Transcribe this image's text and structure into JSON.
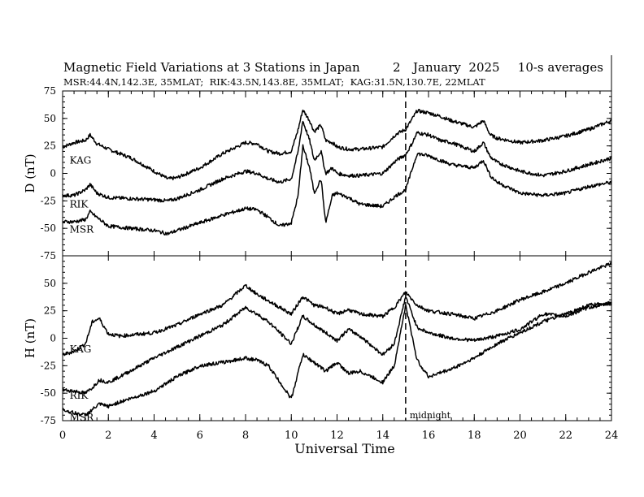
{
  "chart_data": {
    "type": "line",
    "title": "Magnetic Field Variations at 3 Stations in Japan",
    "date_day": "2",
    "date_text": "January  2025",
    "averaging": "10-s averages",
    "subtitle": "MSR:44.4N,142.3E, 35MLAT;  RIK:43.5N,143.8E, 35MLAT;  KAG:31.5N,130.7E, 22MLAT",
    "xlabel": "Universal Time",
    "xlim": [
      0,
      24
    ],
    "xticks": [
      "0",
      "2",
      "4",
      "6",
      "8",
      "10",
      "12",
      "14",
      "16",
      "18",
      "20",
      "22",
      "24"
    ],
    "midnight_ut": 15,
    "midnight_label": "midnight",
    "panels": [
      {
        "ylabel": "D (nT)",
        "ylim": [
          -75,
          75
        ],
        "yticks": [
          "75",
          "50",
          "25",
          "0",
          "-25",
          "-50",
          "-75"
        ],
        "series": [
          {
            "name": "KAG",
            "label_ut": 0.2,
            "label_value": 12,
            "x": [
              0,
              0.5,
              1,
              1.2,
              1.5,
              2,
              3,
              4,
              4.6,
              5,
              6,
              7,
              8,
              8.5,
              9,
              9.5,
              10,
              10.3,
              10.5,
              10.8,
              11,
              11.3,
              11.5,
              11.8,
              12,
              12.5,
              13,
              14,
              14.6,
              15,
              15.3,
              15.5,
              16,
              16.5,
              17,
              18,
              18.4,
              18.7,
              19,
              20,
              21,
              22,
              23,
              24
            ],
            "y": [
              24,
              28,
              30,
              35,
              27,
              22,
              14,
              2,
              -5,
              -4,
              5,
              18,
              28,
              27,
              20,
              18,
              20,
              40,
              58,
              48,
              38,
              44,
              30,
              28,
              24,
              22,
              22,
              24,
              36,
              40,
              50,
              57,
              55,
              52,
              48,
              42,
              48,
              35,
              32,
              28,
              30,
              34,
              40,
              48
            ]
          },
          {
            "name": "RIK",
            "label_ut": 0.2,
            "label_value": -28,
            "x": [
              0,
              0.5,
              1,
              1.2,
              1.5,
              2,
              3,
              4,
              4.6,
              5,
              6,
              7,
              8,
              8.5,
              9,
              9.5,
              10,
              10.3,
              10.5,
              10.8,
              11,
              11.3,
              11.5,
              11.8,
              12,
              12.5,
              13,
              14,
              14.6,
              15,
              15.3,
              15.5,
              16,
              16.5,
              17,
              18,
              18.4,
              18.7,
              19,
              20,
              21,
              22,
              23,
              24
            ],
            "y": [
              -20,
              -20,
              -15,
              -10,
              -18,
              -22,
              -23,
              -24,
              -25,
              -23,
              -15,
              -5,
              2,
              0,
              -5,
              -8,
              -5,
              20,
              48,
              30,
              12,
              20,
              0,
              5,
              0,
              -2,
              -2,
              0,
              12,
              17,
              28,
              37,
              35,
              30,
              28,
              20,
              28,
              15,
              10,
              2,
              -2,
              2,
              8,
              14
            ]
          },
          {
            "name": "MSR",
            "label_ut": 0.2,
            "label_value": -51,
            "x": [
              0,
              0.5,
              1,
              1.2,
              1.5,
              2,
              3,
              4,
              4.6,
              5,
              6,
              7,
              8,
              8.5,
              9,
              9.5,
              10,
              10.3,
              10.5,
              10.8,
              11,
              11.3,
              11.5,
              11.8,
              12,
              12.5,
              13,
              14,
              14.6,
              15,
              15.3,
              15.5,
              16,
              16.5,
              17,
              18,
              18.4,
              18.7,
              19,
              20,
              21,
              22,
              23,
              24
            ],
            "y": [
              -44,
              -44,
              -42,
              -35,
              -40,
              -48,
              -50,
              -52,
              -55,
              -52,
              -45,
              -38,
              -32,
              -33,
              -40,
              -48,
              -45,
              -20,
              25,
              5,
              -18,
              -5,
              -45,
              -20,
              -18,
              -22,
              -28,
              -30,
              -20,
              -15,
              5,
              18,
              16,
              12,
              8,
              5,
              12,
              -2,
              -8,
              -18,
              -20,
              -18,
              -12,
              -8
            ]
          }
        ]
      },
      {
        "ylabel": "H (nT)",
        "ylim": [
          -75,
          75
        ],
        "yticks": [
          "75",
          "50",
          "25",
          "0",
          "-25",
          "-50",
          "-75"
        ],
        "series": [
          {
            "name": "KAG",
            "label_ut": 0.2,
            "label_value": -10,
            "x": [
              0,
              0.5,
              1,
              1.3,
              1.6,
              2,
              2.5,
              4,
              5,
              6,
              7,
              8,
              8.5,
              9,
              10,
              10.5,
              11,
              11.5,
              12,
              12.5,
              13,
              14,
              14.5,
              15,
              15.5,
              16,
              17,
              18,
              19,
              20,
              21,
              22,
              23,
              24
            ],
            "y": [
              -15,
              -12,
              -5,
              15,
              18,
              4,
              2,
              5,
              12,
              22,
              30,
              48,
              40,
              34,
              22,
              38,
              30,
              28,
              22,
              26,
              22,
              20,
              28,
              42,
              30,
              25,
              22,
              18,
              25,
              35,
              42,
              50,
              60,
              68
            ]
          },
          {
            "name": "RIK",
            "label_ut": 0.2,
            "label_value": -52,
            "x": [
              0,
              0.5,
              1,
              1.3,
              1.6,
              2,
              2.5,
              4,
              5,
              6,
              7,
              8,
              8.5,
              9,
              10,
              10.5,
              11,
              11.5,
              12,
              12.5,
              13,
              14,
              14.5,
              15,
              15.5,
              16,
              17,
              18,
              19,
              20,
              21,
              22,
              23,
              24
            ],
            "y": [
              -47,
              -48,
              -50,
              -45,
              -38,
              -40,
              -35,
              -18,
              -8,
              2,
              12,
              28,
              22,
              15,
              -5,
              20,
              12,
              5,
              -2,
              8,
              2,
              -15,
              -5,
              38,
              10,
              5,
              0,
              -2,
              2,
              8,
              22,
              20,
              28,
              32
            ]
          },
          {
            "name": "MSR",
            "label_ut": 0.2,
            "label_value": -72,
            "x": [
              0,
              0.5,
              1,
              1.3,
              1.6,
              2,
              2.5,
              4,
              5,
              6,
              7,
              8,
              8.5,
              9,
              10,
              10.5,
              11,
              11.5,
              12,
              12.5,
              13,
              14,
              14.5,
              15,
              15.5,
              16,
              17,
              18,
              19,
              20,
              21,
              22,
              23,
              24
            ],
            "y": [
              -65,
              -68,
              -70,
              -65,
              -60,
              -62,
              -58,
              -48,
              -35,
              -25,
              -22,
              -18,
              -20,
              -25,
              -55,
              -15,
              -22,
              -30,
              -22,
              -32,
              -30,
              -40,
              -25,
              30,
              -20,
              -35,
              -28,
              -18,
              -5,
              5,
              15,
              22,
              30,
              32
            ]
          }
        ]
      }
    ]
  }
}
